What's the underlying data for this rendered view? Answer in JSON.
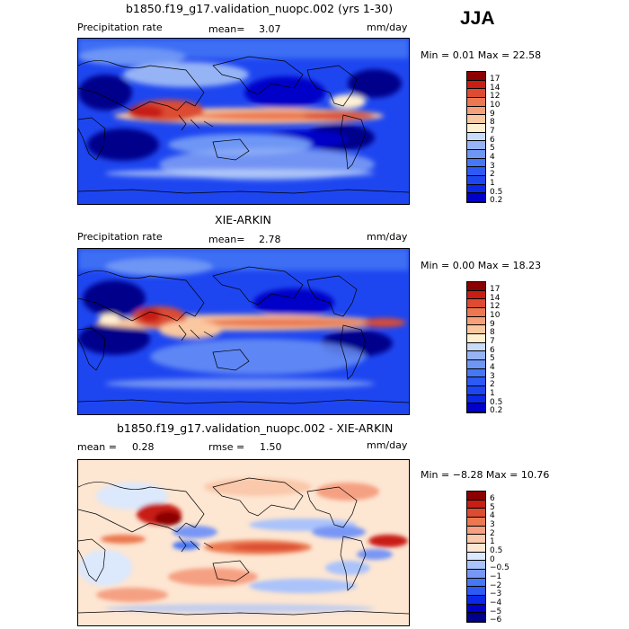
{
  "season": "JJA",
  "panels": [
    {
      "title": "b1850.f19_g17.validation_nuopc.002 (yrs 1-30)",
      "left_label": "Precipitation rate",
      "mean_text": "mean=",
      "mean_value": "3.07",
      "units": "mm/day",
      "stats": "Min =    0.01 Max =   22.58",
      "min": 0.01,
      "max": 22.58,
      "colorbar_labels": [
        "17",
        "14",
        "12",
        "10",
        "9",
        "8",
        "7",
        "6",
        "5",
        "4",
        "3",
        "2",
        "1",
        "0.5",
        "0.2"
      ]
    },
    {
      "title": "XIE-ARKIN",
      "left_label": "Precipitation rate",
      "mean_text": "mean=",
      "mean_value": "2.78",
      "units": "mm/day",
      "stats": "Min =    0.00 Max =   18.23",
      "min": 0.0,
      "max": 18.23,
      "colorbar_labels": [
        "17",
        "14",
        "12",
        "10",
        "9",
        "8",
        "7",
        "6",
        "5",
        "4",
        "3",
        "2",
        "1",
        "0.5",
        "0.2"
      ]
    },
    {
      "title": "b1850.f19_g17.validation_nuopc.002 - XIE-ARKIN",
      "mean_text": "mean =",
      "mean_value": "0.28",
      "rmse_text": "rmse =",
      "rmse_value": "1.50",
      "units": "mm/day",
      "stats": "Min =  −8.28 Max =   10.76",
      "min": -8.28,
      "max": 10.76,
      "colorbar_labels": [
        "6",
        "5",
        "4",
        "3",
        "2",
        "1",
        "0.5",
        "0",
        "−0.5",
        "−1",
        "−2",
        "−3",
        "−4",
        "−5",
        "−6"
      ]
    }
  ],
  "chart_data": [
    {
      "type": "heatmap",
      "title": "b1850.f19_g17.validation_nuopc.002 (yrs 1-30)",
      "variable": "Precipitation rate",
      "units": "mm/day",
      "mean": 3.07,
      "min": 0.01,
      "max": 22.58,
      "levels": [
        0.2,
        0.5,
        1,
        2,
        3,
        4,
        5,
        6,
        7,
        8,
        9,
        10,
        12,
        14,
        17
      ],
      "colors": [
        "#00008b",
        "#0000c8",
        "#0a28e6",
        "#1e46f0",
        "#2d5af5",
        "#4678f5",
        "#6e96f5",
        "#96b4f5",
        "#c8dcfa",
        "#fff0d2",
        "#fac8a0",
        "#f5a078",
        "#eb7850",
        "#dc4b32",
        "#c81e14",
        "#8b0000"
      ]
    },
    {
      "type": "heatmap",
      "title": "XIE-ARKIN",
      "variable": "Precipitation rate",
      "units": "mm/day",
      "mean": 2.78,
      "min": 0.0,
      "max": 18.23,
      "levels": [
        0.2,
        0.5,
        1,
        2,
        3,
        4,
        5,
        6,
        7,
        8,
        9,
        10,
        12,
        14,
        17
      ],
      "colors": [
        "#00008b",
        "#0000c8",
        "#0a28e6",
        "#1e46f0",
        "#2d5af5",
        "#4678f5",
        "#6e96f5",
        "#96b4f5",
        "#c8dcfa",
        "#fff0d2",
        "#fac8a0",
        "#f5a078",
        "#eb7850",
        "#dc4b32",
        "#c81e14",
        "#8b0000"
      ]
    },
    {
      "type": "heatmap",
      "title": "b1850.f19_g17.validation_nuopc.002 - XIE-ARKIN",
      "units": "mm/day",
      "mean": 0.28,
      "rmse": 1.5,
      "min": -8.28,
      "max": 10.76,
      "levels": [
        -6,
        -5,
        -4,
        -3,
        -2,
        -1,
        -0.5,
        0,
        0.5,
        1,
        2,
        3,
        4,
        5,
        6
      ],
      "colors": [
        "#00008b",
        "#0000c8",
        "#0a28e6",
        "#2d5af5",
        "#4678f5",
        "#7896f5",
        "#aac3fa",
        "#dce8fc",
        "#fde6d2",
        "#fac8aa",
        "#f5a082",
        "#eb7850",
        "#dc4b32",
        "#c81e14",
        "#a00a0a",
        "#8b0000"
      ]
    }
  ]
}
